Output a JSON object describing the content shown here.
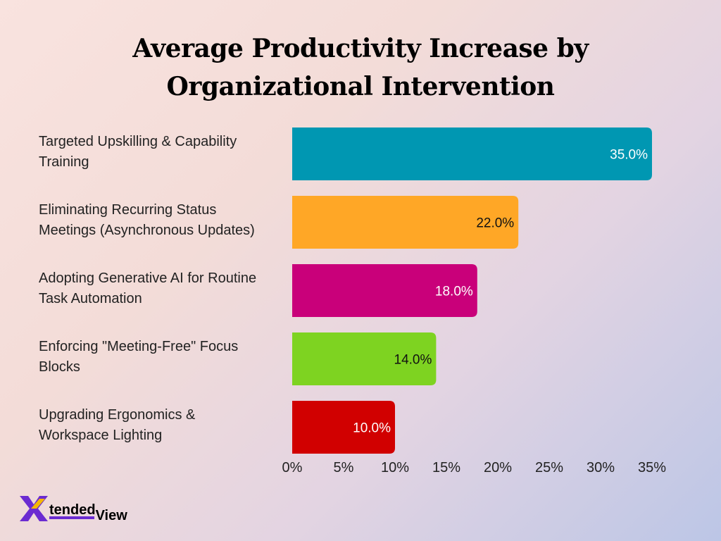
{
  "title_line1": "Average Productivity Increase by",
  "title_line2": "Organizational Intervention",
  "brand": {
    "name_part1": "tended",
    "name_part2": "View",
    "color": "#6b2bd1"
  },
  "chart_data": {
    "type": "bar",
    "orientation": "horizontal",
    "title": "Average Productivity Increase by Organizational Intervention",
    "categories": [
      [
        "Targeted Upskilling & Capability",
        "Training"
      ],
      [
        "Eliminating Recurring Status",
        "Meetings (Asynchronous Updates)"
      ],
      [
        "Adopting Generative AI for Routine",
        "Task Automation"
      ],
      [
        "Enforcing \"Meeting-Free\" Focus",
        "Blocks"
      ],
      [
        "Upgrading Ergonomics &",
        "Workspace Lighting"
      ]
    ],
    "values": [
      35.0,
      22.0,
      18.0,
      14.0,
      10.0
    ],
    "value_labels": [
      "35.0%",
      "22.0%",
      "18.0%",
      "14.0%",
      "10.0%"
    ],
    "colors": [
      "#0097b2",
      "#ffa726",
      "#c9007a",
      "#7ed321",
      "#d10000"
    ],
    "value_label_colors": [
      "#ffffff",
      "#111111",
      "#ffffff",
      "#111111",
      "#ffffff"
    ],
    "xlim": [
      0,
      35
    ],
    "xticks": [
      "0%",
      "5%",
      "10%",
      "15%",
      "20%",
      "25%",
      "30%",
      "35%"
    ],
    "xlabel": "",
    "ylabel": "",
    "grid": false,
    "legend": "none"
  }
}
